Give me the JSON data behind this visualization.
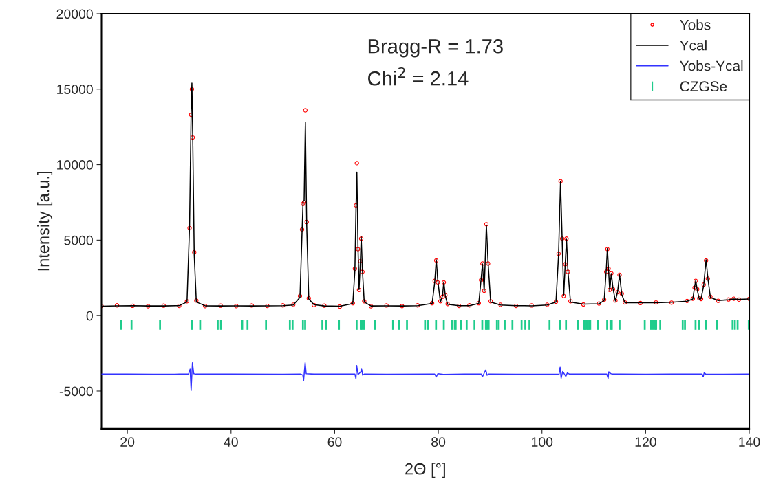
{
  "chart_data": {
    "type": "line",
    "xlabel": "2Θ [°]",
    "ylabel": "Intensity [a.u.]",
    "xlim": [
      15,
      140
    ],
    "xticks": [
      20,
      40,
      60,
      80,
      100,
      120,
      140
    ],
    "ylim": [
      -7500,
      20000
    ],
    "yticks": [
      -5000,
      0,
      5000,
      10000,
      15000,
      20000
    ],
    "grid": false,
    "legend": "top right",
    "annotations": [
      "Bragg-R = 1.73",
      "Chi$^{2}$ = 2.14"
    ],
    "series": [
      {
        "name": "Yobs",
        "type": "scatter",
        "marker": "circle",
        "color": "#ff0000",
        "x": [
          15,
          18,
          21,
          24,
          27,
          30,
          31.5,
          32.0,
          32.3,
          32.45,
          32.6,
          32.9,
          33.3,
          35,
          38,
          41,
          44,
          47,
          50,
          52,
          53.3,
          53.7,
          53.9,
          54.1,
          54.34,
          54.6,
          55.0,
          56,
          58,
          61,
          63.5,
          63.9,
          64.1,
          64.28,
          64.5,
          64.7,
          64.95,
          65.12,
          65.35,
          65.7,
          67,
          70,
          73,
          76,
          78.8,
          79.3,
          79.6,
          79.9,
          80.4,
          80.8,
          81.06,
          81.35,
          81.8,
          84,
          86,
          87.8,
          88.25,
          88.52,
          88.85,
          89.27,
          89.6,
          90.1,
          92,
          95,
          98,
          101,
          102.7,
          103.2,
          103.58,
          103.9,
          104.2,
          104.5,
          104.73,
          105.0,
          105.5,
          108,
          111,
          112.0,
          112.4,
          112.62,
          112.85,
          113.07,
          113.38,
          113.7,
          114.17,
          114.6,
          114.97,
          115.4,
          116,
          119,
          122,
          125,
          128,
          129.1,
          129.45,
          129.67,
          129.95,
          130.35,
          130.7,
          131.2,
          131.66,
          132.0,
          132.5,
          134,
          136,
          137,
          138,
          140
        ],
        "values": [
          640,
          680,
          650,
          620,
          660,
          640,
          950,
          5800,
          13300,
          15000,
          11800,
          4200,
          1000,
          630,
          660,
          630,
          670,
          640,
          680,
          720,
          1300,
          5700,
          7400,
          7500,
          13600,
          6200,
          1150,
          700,
          660,
          600,
          820,
          3100,
          7300,
          10100,
          4400,
          1700,
          3600,
          5100,
          2900,
          950,
          620,
          670,
          630,
          680,
          820,
          2300,
          3650,
          2200,
          950,
          1250,
          2200,
          1350,
          770,
          640,
          680,
          820,
          2350,
          3450,
          1650,
          6050,
          3450,
          950,
          720,
          640,
          670,
          720,
          920,
          4100,
          8900,
          5100,
          1300,
          3400,
          5100,
          2900,
          950,
          740,
          800,
          1050,
          2900,
          4400,
          3100,
          1700,
          2800,
          1750,
          1000,
          1550,
          2700,
          1450,
          870,
          830,
          870,
          860,
          970,
          1120,
          1850,
          2300,
          1750,
          1150,
          1100,
          2050,
          3650,
          2450,
          1250,
          980,
          1070,
          1120,
          1060,
          1110
        ]
      },
      {
        "name": "Ycal",
        "color": "#000000",
        "x": [
          15,
          18,
          21,
          24,
          27,
          30,
          31.5,
          32.0,
          32.3,
          32.45,
          32.6,
          32.9,
          33.3,
          35,
          38,
          41,
          44,
          47,
          50,
          52,
          53.3,
          53.7,
          53.9,
          54.1,
          54.34,
          54.6,
          55.0,
          56,
          58,
          61,
          63.5,
          63.9,
          64.1,
          64.28,
          64.5,
          64.7,
          64.95,
          65.12,
          65.35,
          65.7,
          67,
          70,
          73,
          76,
          78.8,
          79.3,
          79.6,
          79.9,
          80.4,
          80.8,
          81.06,
          81.35,
          81.8,
          84,
          86,
          87.8,
          88.25,
          88.52,
          88.85,
          89.27,
          89.6,
          90.1,
          92,
          95,
          98,
          101,
          102.7,
          103.2,
          103.58,
          103.9,
          104.2,
          104.5,
          104.73,
          105.0,
          105.5,
          108,
          111,
          112.0,
          112.4,
          112.62,
          112.85,
          113.07,
          113.38,
          113.7,
          114.17,
          114.6,
          114.97,
          115.4,
          116,
          119,
          122,
          125,
          128,
          129.1,
          129.45,
          129.67,
          129.95,
          130.35,
          130.7,
          131.2,
          131.66,
          132.0,
          132.5,
          134,
          136,
          137,
          138,
          140
        ],
        "values": [
          620,
          650,
          660,
          640,
          640,
          660,
          900,
          6000,
          13500,
          15400,
          12000,
          4000,
          900,
          650,
          640,
          650,
          640,
          650,
          660,
          700,
          1200,
          5500,
          7560,
          7600,
          12820,
          6000,
          1100,
          720,
          640,
          620,
          800,
          3000,
          7000,
          9500,
          4500,
          1730,
          3500,
          5210,
          3000,
          900,
          640,
          650,
          640,
          660,
          800,
          2200,
          3700,
          2300,
          900,
          1300,
          2230,
          1300,
          750,
          660,
          660,
          800,
          2400,
          3420,
          1600,
          6000,
          3500,
          900,
          700,
          660,
          650,
          700,
          900,
          4000,
          8880,
          5000,
          1360,
          3500,
          5060,
          3000,
          900,
          760,
          780,
          1000,
          3000,
          4450,
          3000,
          1650,
          2790,
          1800,
          970,
          1600,
          2710,
          1400,
          850,
          850,
          850,
          880,
          950,
          1100,
          1900,
          2330,
          1700,
          1100,
          1120,
          2000,
          3700,
          2500,
          1200,
          1000,
          1050,
          1100,
          1080,
          1100
        ]
      },
      {
        "name": "Yobs-Ycal",
        "color": "#3333ff",
        "x": [
          15,
          20,
          25,
          30,
          31.8,
          32.1,
          32.3,
          32.55,
          32.8,
          33.2,
          40,
          50,
          53.5,
          53.85,
          54.0,
          54.3,
          54.5,
          56,
          63.9,
          64.1,
          64.24,
          64.5,
          65.0,
          65.2,
          65.4,
          65.7,
          70,
          79.3,
          79.6,
          79.9,
          81,
          85,
          88.3,
          88.5,
          88.8,
          89.15,
          89.4,
          89.7,
          95,
          103.3,
          103.5,
          103.7,
          104.0,
          104.6,
          104.9,
          105.3,
          110,
          112.5,
          112.76,
          112.9,
          113.3,
          113.6,
          115,
          120,
          125,
          130.9,
          131.1,
          131.3,
          131.6,
          135,
          140
        ],
        "values": [
          -3880,
          -3870,
          -3890,
          -3880,
          -3880,
          -3550,
          -4970,
          -3120,
          -3850,
          -3880,
          -3880,
          -3890,
          -3880,
          -3950,
          -4300,
          -3120,
          -3850,
          -3880,
          -3880,
          -4180,
          -3300,
          -3900,
          -3750,
          -3550,
          -3950,
          -3880,
          -3890,
          -3880,
          -4060,
          -3850,
          -3900,
          -3880,
          -3880,
          -4060,
          -3850,
          -3600,
          -3950,
          -3880,
          -3890,
          -3880,
          -3420,
          -4150,
          -3700,
          -4030,
          -3800,
          -3880,
          -3880,
          -3880,
          -4150,
          -3730,
          -3850,
          -3870,
          -3870,
          -3890,
          -3880,
          -3880,
          -4060,
          -3790,
          -3880,
          -3890,
          -3880
        ]
      },
      {
        "name": "CZGSe",
        "type": "bar",
        "color": "#1fcc8c",
        "x": [
          18.8,
          20.8,
          26.3,
          32.45,
          34.04,
          37.44,
          38.05,
          42.16,
          43.18,
          46.75,
          51.35,
          51.88,
          53.87,
          54.3,
          57.62,
          58.32,
          60.83,
          64.24,
          65.03,
          65.26,
          65.66,
          67.77,
          71.26,
          72.45,
          73.95,
          77.44,
          77.97,
          79.56,
          81.06,
          82.65,
          83.18,
          83.35,
          84.41,
          85.47,
          86.98,
          88.48,
          89.18,
          89.44,
          89.71,
          91.3,
          91.66,
          92.81,
          94.3,
          96.07,
          96.78,
          97.58,
          101.46,
          103.48,
          104.64,
          106.93,
          108.08,
          108.34,
          108.61,
          108.87,
          109.14,
          109.31,
          110.82,
          112.58,
          113.21,
          113.47,
          114.97,
          119.83,
          121.06,
          121.42,
          121.76,
          122.03,
          122.82,
          127.15,
          127.59,
          129.63,
          130.33,
          131.66,
          133.77,
          136.78,
          137.22,
          137.75,
          139.9
        ],
        "base": [
          -900,
          -900,
          -900,
          -900,
          -900,
          -900,
          -900,
          -900,
          -900,
          -900,
          -900,
          -900,
          -900,
          -900,
          -900,
          -900,
          -900,
          -900,
          -900,
          -900,
          -900,
          -900,
          -900,
          -900,
          -900,
          -900,
          -900,
          -900,
          -900,
          -900,
          -900,
          -900,
          -900,
          -900,
          -900,
          -900,
          -900,
          -900,
          -900,
          -900,
          -900,
          -900,
          -900,
          -900,
          -900,
          -900,
          -900,
          -900,
          -900,
          -900,
          -900,
          -900,
          -900,
          -900,
          -900,
          -900,
          -900,
          -900,
          -900,
          -900,
          -900,
          -900,
          -900,
          -900,
          -900,
          -900,
          -900,
          -900,
          -900,
          -900,
          -900,
          -900,
          -900,
          -900,
          -900,
          -900,
          -900
        ],
        "values": [
          550,
          550,
          550,
          550,
          550,
          550,
          550,
          550,
          550,
          550,
          550,
          550,
          550,
          550,
          550,
          550,
          550,
          550,
          550,
          550,
          550,
          550,
          550,
          550,
          550,
          550,
          550,
          550,
          550,
          550,
          550,
          550,
          550,
          550,
          550,
          550,
          550,
          550,
          550,
          550,
          550,
          550,
          550,
          550,
          550,
          550,
          550,
          550,
          550,
          550,
          550,
          550,
          550,
          550,
          550,
          550,
          550,
          550,
          550,
          550,
          550,
          550,
          550,
          550,
          550,
          550,
          550,
          550,
          550,
          550,
          550,
          550,
          550,
          550,
          550,
          550,
          550
        ]
      }
    ]
  }
}
